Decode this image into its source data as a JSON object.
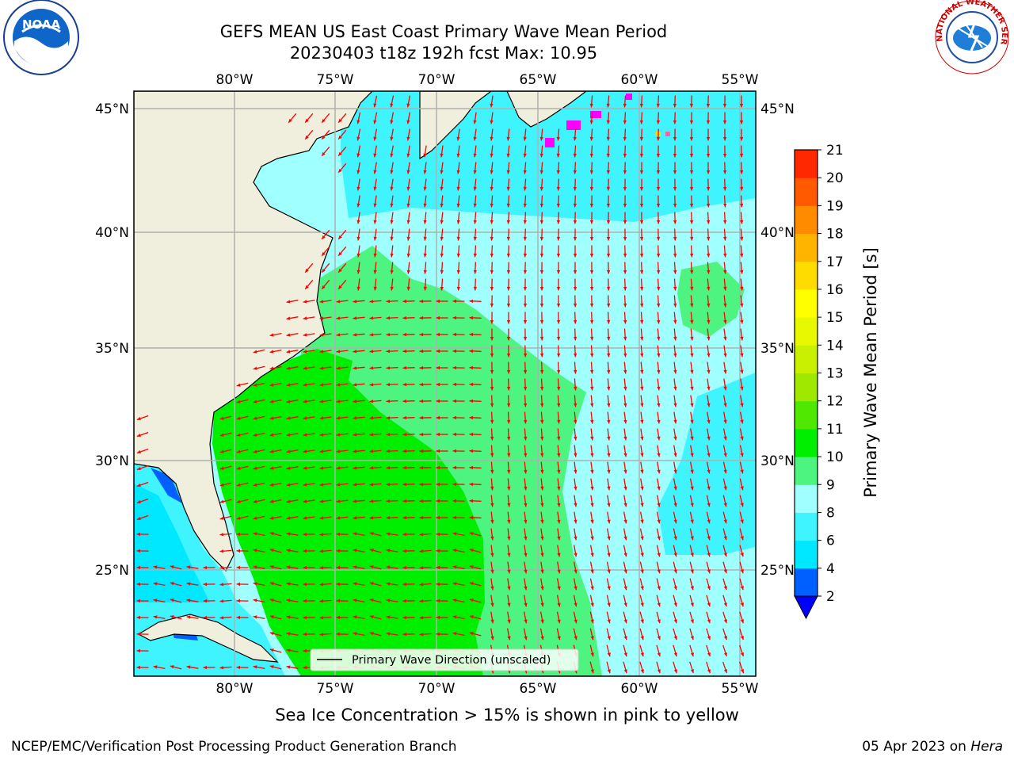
{
  "header": {
    "title_line1": "GEFS MEAN US East Coast Primary Wave Mean Period",
    "title_line2": "20230403 t18z 192h fcst   Max: 10.95"
  },
  "logos": {
    "left": {
      "icon": "noaa-logo-icon",
      "text": "NOAA"
    },
    "right": {
      "icon": "nws-logo-icon",
      "text": "NATIONAL WEATHER SERVICE"
    }
  },
  "map": {
    "lon_ticks": [
      "80°W",
      "75°W",
      "70°W",
      "65°W",
      "60°W",
      "55°W"
    ],
    "lat_ticks": [
      "45°N",
      "40°N",
      "35°N",
      "30°N",
      "25°N"
    ],
    "legend_label": "Primary Wave Direction (unscaled)",
    "arrow_color": "#ff0000"
  },
  "colorbar": {
    "label": "Primary Wave Mean Period [s]",
    "ticks": [
      "2",
      "4",
      "6",
      "8",
      "9",
      "10",
      "11",
      "12",
      "13",
      "14",
      "15",
      "16",
      "17",
      "18",
      "19",
      "20",
      "21"
    ],
    "colors": [
      "#0060ff",
      "#00e8ff",
      "#40f4ff",
      "#a0ffff",
      "#4ef480",
      "#00ee00",
      "#50e800",
      "#a0e800",
      "#c8f000",
      "#e8f800",
      "#ffff00",
      "#ffdc00",
      "#ffb400",
      "#ff8c00",
      "#ff5a00",
      "#ff2800",
      "#ff0000"
    ],
    "under_color": "#0000ff"
  },
  "footer": {
    "note": "Sea Ice Concentration > 15% is shown in pink to yellow",
    "org": "NCEP/EMC/Verification Post Processing Product Generation Branch",
    "date": "05 Apr 2023 on ",
    "machine": "Hera"
  }
}
